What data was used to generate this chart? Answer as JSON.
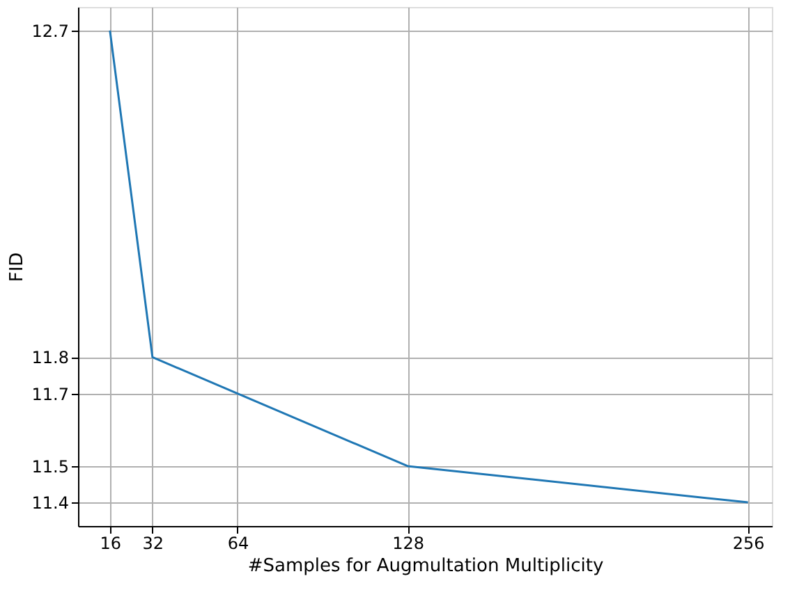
{
  "chart_data": {
    "type": "line",
    "xlabel": "#Samples for Augmultation Multiplicity",
    "ylabel": "FID",
    "x": [
      16,
      32,
      64,
      128,
      256
    ],
    "series": [
      {
        "color": "#1f77b4",
        "values": [
          12.7,
          11.8,
          11.7,
          11.5,
          11.4
        ]
      }
    ],
    "xlim": [
      4,
      265
    ],
    "ylim": [
      11.335,
      12.765
    ],
    "xticks": [
      16,
      32,
      64,
      128,
      256
    ],
    "yticks": [
      11.4,
      11.5,
      11.7,
      11.8,
      12.7
    ],
    "grid": true,
    "marker": "none",
    "line_style": "solid"
  }
}
